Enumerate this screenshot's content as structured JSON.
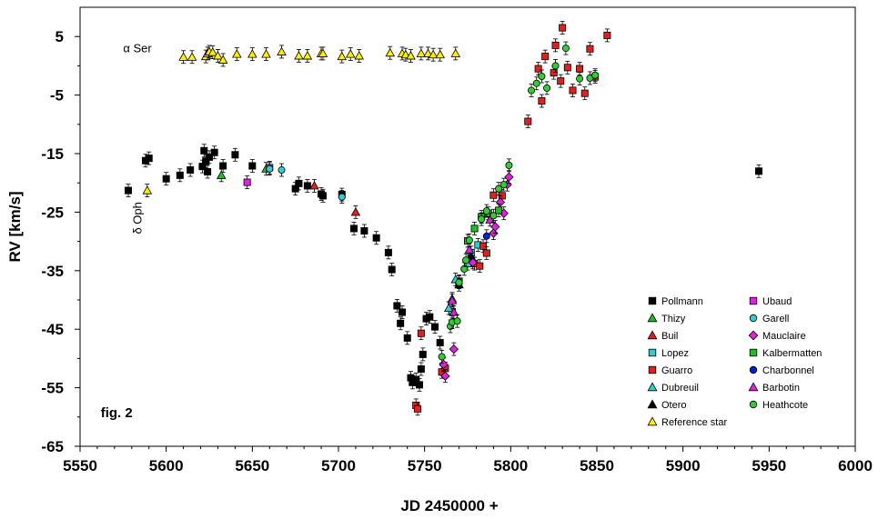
{
  "chart_data": {
    "type": "scatter",
    "xlabel": "JD 2450000 +",
    "ylabel": "RV [km/s]",
    "xlim": [
      5550,
      6000
    ],
    "ylim": [
      -65,
      10
    ],
    "x_ticks": [
      5550,
      5600,
      5650,
      5700,
      5750,
      5800,
      5850,
      5900,
      5950,
      6000
    ],
    "y_ticks": [
      5,
      -5,
      -15,
      -25,
      -35,
      -45,
      -55,
      -65
    ],
    "grid": false,
    "legend_position": "bottom-right",
    "annotations": [
      {
        "id": "alpha-ser",
        "text": "α Ser",
        "x": 5575,
        "y": 2.3
      },
      {
        "id": "delta-oph",
        "text": "δ Oph",
        "x": 5583,
        "y": -26
      },
      {
        "id": "fig",
        "text": "fig. 2",
        "x": 5562,
        "y": -60
      }
    ],
    "series": [
      {
        "name": "Pollmann",
        "marker": "square",
        "color": "#000000",
        "points": [
          [
            5578,
            -21.3
          ],
          [
            5588,
            -16.2
          ],
          [
            5590,
            -15.8
          ],
          [
            5600,
            -19.3
          ],
          [
            5608,
            -18.7
          ],
          [
            5614,
            -17.8
          ],
          [
            5621,
            -17.2
          ],
          [
            5622,
            -14.5
          ],
          [
            5623,
            -16.3
          ],
          [
            5624,
            -18.1
          ],
          [
            5625,
            -15.6
          ],
          [
            5628,
            -14.8
          ],
          [
            5633,
            -17.1
          ],
          [
            5640,
            -15.2
          ],
          [
            5650,
            -17.1
          ],
          [
            5675,
            -21.0
          ],
          [
            5677,
            -20.1
          ],
          [
            5682,
            -20.5
          ],
          [
            5690,
            -21.9
          ],
          [
            5691,
            -22.2
          ],
          [
            5702,
            -22.0
          ],
          [
            5709,
            -27.8
          ],
          [
            5715,
            -28.2
          ],
          [
            5722,
            -29.4
          ],
          [
            5729,
            -31.9
          ],
          [
            5731,
            -34.8
          ],
          [
            5734,
            -41.0
          ],
          [
            5736,
            -44.0
          ],
          [
            5737,
            -42.1
          ],
          [
            5740,
            -46.5
          ],
          [
            5742,
            -53.3
          ],
          [
            5743,
            -54.1
          ],
          [
            5745,
            -53.6
          ],
          [
            5747,
            -54.5
          ],
          [
            5748,
            -51.8
          ],
          [
            5749,
            -49.3
          ],
          [
            5751,
            -43.2
          ],
          [
            5753,
            -42.9
          ],
          [
            5756,
            -44.6
          ],
          [
            5759,
            -47.3
          ],
          [
            5944,
            -18.0
          ]
        ]
      },
      {
        "name": "Thizy",
        "marker": "triangle",
        "color": "#22bb22",
        "points": [
          [
            5632,
            -18.7
          ],
          [
            5658,
            -17.6
          ]
        ]
      },
      {
        "name": "Buil",
        "marker": "triangle",
        "color": "#dd2222",
        "points": [
          [
            5686,
            -20.5
          ],
          [
            5710,
            -25.0
          ]
        ]
      },
      {
        "name": "Lopez",
        "marker": "square",
        "color": "#33cccc",
        "points": [
          [
            5766,
            -42.0
          ],
          [
            5775,
            -33.8
          ],
          [
            5777,
            -31.9
          ],
          [
            5781,
            -30.6
          ]
        ]
      },
      {
        "name": "Guarro",
        "marker": "square",
        "color": "#dd2222",
        "points": [
          [
            5745,
            -58.0
          ],
          [
            5746,
            -58.6
          ],
          [
            5748,
            -45.7
          ],
          [
            5760,
            -52.3
          ],
          [
            5762,
            -51.7
          ],
          [
            5770,
            -36.8
          ],
          [
            5779,
            -33.8
          ],
          [
            5782,
            -34.2
          ],
          [
            5784,
            -30.8
          ],
          [
            5786,
            -32.0
          ],
          [
            5790,
            -22.1
          ],
          [
            5795,
            -22.2
          ],
          [
            5810,
            -9.5
          ],
          [
            5816,
            -0.5
          ],
          [
            5818,
            -6.0
          ],
          [
            5820,
            1.6
          ],
          [
            5825,
            -1.2
          ],
          [
            5826,
            3.5
          ],
          [
            5829,
            -2.6
          ],
          [
            5830,
            6.5
          ],
          [
            5833,
            -0.3
          ],
          [
            5836,
            -4.2
          ],
          [
            5840,
            -0.5
          ],
          [
            5843,
            -4.7
          ],
          [
            5846,
            2.9
          ],
          [
            5849,
            -1.9
          ],
          [
            5856,
            5.2
          ]
        ]
      },
      {
        "name": "Dubreuil",
        "marker": "triangle",
        "color": "#33cccc",
        "points": [
          [
            5764,
            -41.4
          ],
          [
            5766,
            -39.8
          ],
          [
            5768,
            -36.5
          ]
        ]
      },
      {
        "name": "Otero",
        "marker": "triangle",
        "color": "#000000",
        "points": [
          [
            5770,
            -37.4
          ],
          [
            5777,
            -32.5
          ]
        ]
      },
      {
        "name": "Reference star",
        "marker": "triangle",
        "color": "#ffee00",
        "points": [
          [
            5610,
            1.5
          ],
          [
            5615,
            1.5
          ],
          [
            5623,
            1.6
          ],
          [
            5624,
            2.1
          ],
          [
            5625,
            2.4
          ],
          [
            5627,
            2.3
          ],
          [
            5630,
            1.7
          ],
          [
            5633,
            1.0
          ],
          [
            5641,
            2.0
          ],
          [
            5650,
            2.0
          ],
          [
            5658,
            2.0
          ],
          [
            5667,
            2.4
          ],
          [
            5677,
            1.7
          ],
          [
            5682,
            1.7
          ],
          [
            5690,
            2.1
          ],
          [
            5691,
            2.1
          ],
          [
            5702,
            1.6
          ],
          [
            5707,
            2.0
          ],
          [
            5712,
            1.7
          ],
          [
            5730,
            2.2
          ],
          [
            5737,
            2.1
          ],
          [
            5739,
            1.9
          ],
          [
            5742,
            1.7
          ],
          [
            5748,
            2.1
          ],
          [
            5752,
            2.1
          ],
          [
            5755,
            1.9
          ],
          [
            5759,
            1.9
          ],
          [
            5768,
            2.1
          ],
          [
            5589,
            -21.3
          ]
        ]
      },
      {
        "name": "Ubaud",
        "marker": "square",
        "color": "#dd22dd",
        "points": [
          [
            5647,
            -19.9
          ],
          [
            5660,
            -17.4
          ]
        ]
      },
      {
        "name": "Garell",
        "marker": "circle",
        "color": "#33cccc",
        "points": [
          [
            5660,
            -17.6
          ],
          [
            5667,
            -17.8
          ],
          [
            5702,
            -22.4
          ]
        ]
      },
      {
        "name": "Mauclaire",
        "marker": "diamond",
        "color": "#dd22dd",
        "points": [
          [
            5761,
            -51.0
          ],
          [
            5762,
            -53.0
          ],
          [
            5767,
            -48.4
          ],
          [
            5778,
            -33.6
          ],
          [
            5790,
            -28.6
          ],
          [
            5791,
            -27.5
          ],
          [
            5794,
            -23.3
          ],
          [
            5796,
            -25.2
          ],
          [
            5798,
            -20.3
          ],
          [
            5799,
            -19.0
          ]
        ]
      },
      {
        "name": "Kalbermatten",
        "marker": "square",
        "color": "#22bb22",
        "points": [
          [
            5775,
            -29.9
          ],
          [
            5779,
            -27.8
          ],
          [
            5783,
            -25.8
          ],
          [
            5787,
            -25.2
          ],
          [
            5793,
            -24.7
          ]
        ]
      },
      {
        "name": "Charbonnel",
        "marker": "circle",
        "color": "#0022cc",
        "points": [
          [
            5786,
            -29.1
          ]
        ]
      },
      {
        "name": "Barbotin",
        "marker": "triangle",
        "color": "#dd22dd",
        "points": [
          [
            5766,
            -40.1
          ],
          [
            5767,
            -42.1
          ],
          [
            5776,
            -31.4
          ],
          [
            5788,
            -26.3
          ]
        ]
      },
      {
        "name": "Heathcote",
        "marker": "circle",
        "color": "#33cc33",
        "points": [
          [
            5760,
            -49.7
          ],
          [
            5765,
            -44.5
          ],
          [
            5766,
            -43.8
          ],
          [
            5769,
            -43.6
          ],
          [
            5770,
            -37.0
          ],
          [
            5773,
            -34.7
          ],
          [
            5774,
            -33.2
          ],
          [
            5776,
            -29.8
          ],
          [
            5783,
            -26.2
          ],
          [
            5786,
            -24.8
          ],
          [
            5790,
            -25.6
          ],
          [
            5793,
            -21.0
          ],
          [
            5796,
            -20.3
          ],
          [
            5799,
            -17.0
          ],
          [
            5812,
            -4.2
          ],
          [
            5815,
            -3.0
          ],
          [
            5818,
            -1.8
          ],
          [
            5821,
            -3.8
          ],
          [
            5826,
            0.0
          ],
          [
            5832,
            3.0
          ],
          [
            5840,
            -2.2
          ],
          [
            5846,
            -2.1
          ],
          [
            5849,
            -1.6
          ]
        ]
      }
    ]
  }
}
